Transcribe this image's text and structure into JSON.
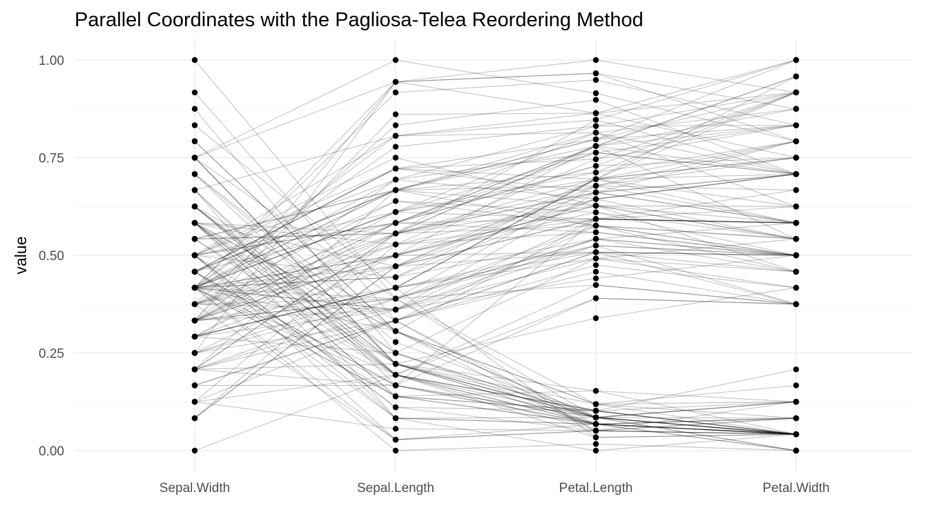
{
  "chart_data": {
    "type": "line",
    "subtype": "parallel-coordinates",
    "title": "Parallel Coordinates with the Pagliosa-Telea Reordering Method",
    "xlabel": "",
    "ylabel": "value",
    "ylim": [
      0,
      1
    ],
    "y_ticks": [
      "0.00",
      "0.25",
      "0.50",
      "0.75",
      "1.00"
    ],
    "y_tick_values": [
      0,
      0.25,
      0.5,
      0.75,
      1
    ],
    "categories": [
      "Sepal.Width",
      "Sepal.Length",
      "Petal.Length",
      "Petal.Width"
    ],
    "grid": true,
    "legend": "none",
    "line_color": "#000000",
    "point_color": "#000000",
    "observations": [
      [
        0.625,
        0.222,
        0.068,
        0.042
      ],
      [
        0.417,
        0.167,
        0.068,
        0.042
      ],
      [
        0.5,
        0.111,
        0.051,
        0.042
      ],
      [
        0.458,
        0.083,
        0.085,
        0.042
      ],
      [
        0.667,
        0.194,
        0.068,
        0.042
      ],
      [
        0.792,
        0.306,
        0.119,
        0.125
      ],
      [
        0.583,
        0.083,
        0.068,
        0.083
      ],
      [
        0.583,
        0.194,
        0.085,
        0.042
      ],
      [
        0.375,
        0.028,
        0.068,
        0.042
      ],
      [
        0.458,
        0.167,
        0.085,
        0.0
      ],
      [
        0.708,
        0.306,
        0.085,
        0.042
      ],
      [
        0.583,
        0.139,
        0.102,
        0.042
      ],
      [
        0.417,
        0.139,
        0.068,
        0.0
      ],
      [
        0.417,
        0.0,
        0.017,
        0.0
      ],
      [
        0.833,
        0.417,
        0.034,
        0.042
      ],
      [
        1.0,
        0.389,
        0.085,
        0.125
      ],
      [
        0.792,
        0.306,
        0.051,
        0.125
      ],
      [
        0.625,
        0.222,
        0.068,
        0.083
      ],
      [
        0.75,
        0.389,
        0.119,
        0.083
      ],
      [
        0.75,
        0.222,
        0.085,
        0.083
      ],
      [
        0.583,
        0.306,
        0.119,
        0.042
      ],
      [
        0.708,
        0.222,
        0.085,
        0.125
      ],
      [
        0.667,
        0.083,
        0.0,
        0.042
      ],
      [
        0.542,
        0.222,
        0.119,
        0.167
      ],
      [
        0.583,
        0.139,
        0.153,
        0.042
      ],
      [
        0.417,
        0.194,
        0.102,
        0.042
      ],
      [
        0.583,
        0.194,
        0.102,
        0.125
      ],
      [
        0.625,
        0.25,
        0.085,
        0.042
      ],
      [
        0.583,
        0.25,
        0.068,
        0.042
      ],
      [
        0.5,
        0.111,
        0.102,
        0.042
      ],
      [
        0.458,
        0.139,
        0.102,
        0.042
      ],
      [
        0.583,
        0.306,
        0.085,
        0.125
      ],
      [
        0.875,
        0.25,
        0.085,
        0.0
      ],
      [
        0.917,
        0.333,
        0.068,
        0.042
      ],
      [
        0.458,
        0.167,
        0.085,
        0.042
      ],
      [
        0.5,
        0.194,
        0.034,
        0.042
      ],
      [
        0.625,
        0.333,
        0.051,
        0.042
      ],
      [
        0.667,
        0.167,
        0.068,
        0.0
      ],
      [
        0.417,
        0.028,
        0.051,
        0.042
      ],
      [
        0.583,
        0.222,
        0.085,
        0.042
      ],
      [
        0.625,
        0.194,
        0.051,
        0.083
      ],
      [
        0.125,
        0.056,
        0.051,
        0.083
      ],
      [
        0.5,
        0.028,
        0.051,
        0.042
      ],
      [
        0.625,
        0.194,
        0.102,
        0.208
      ],
      [
        0.75,
        0.222,
        0.153,
        0.125
      ],
      [
        0.417,
        0.139,
        0.068,
        0.083
      ],
      [
        0.75,
        0.222,
        0.102,
        0.042
      ],
      [
        0.5,
        0.083,
        0.068,
        0.042
      ],
      [
        0.708,
        0.278,
        0.085,
        0.042
      ],
      [
        0.542,
        0.194,
        0.068,
        0.042
      ],
      [
        0.5,
        0.75,
        0.627,
        0.542
      ],
      [
        0.5,
        0.583,
        0.593,
        0.583
      ],
      [
        0.458,
        0.722,
        0.661,
        0.583
      ],
      [
        0.125,
        0.333,
        0.508,
        0.5
      ],
      [
        0.333,
        0.611,
        0.593,
        0.583
      ],
      [
        0.333,
        0.389,
        0.576,
        0.5
      ],
      [
        0.542,
        0.556,
        0.627,
        0.625
      ],
      [
        0.167,
        0.167,
        0.39,
        0.375
      ],
      [
        0.375,
        0.639,
        0.61,
        0.5
      ],
      [
        0.292,
        0.25,
        0.492,
        0.542
      ],
      [
        0.0,
        0.194,
        0.424,
        0.375
      ],
      [
        0.417,
        0.444,
        0.542,
        0.583
      ],
      [
        0.083,
        0.472,
        0.508,
        0.375
      ],
      [
        0.375,
        0.5,
        0.627,
        0.542
      ],
      [
        0.375,
        0.361,
        0.441,
        0.5
      ],
      [
        0.458,
        0.667,
        0.576,
        0.542
      ],
      [
        0.417,
        0.361,
        0.593,
        0.583
      ],
      [
        0.292,
        0.417,
        0.525,
        0.375
      ],
      [
        0.083,
        0.528,
        0.593,
        0.583
      ],
      [
        0.208,
        0.361,
        0.492,
        0.417
      ],
      [
        0.5,
        0.444,
        0.644,
        0.708
      ],
      [
        0.333,
        0.5,
        0.508,
        0.5
      ],
      [
        0.208,
        0.556,
        0.661,
        0.583
      ],
      [
        0.333,
        0.5,
        0.627,
        0.458
      ],
      [
        0.375,
        0.583,
        0.559,
        0.5
      ],
      [
        0.417,
        0.639,
        0.576,
        0.542
      ],
      [
        0.333,
        0.694,
        0.644,
        0.542
      ],
      [
        0.417,
        0.667,
        0.678,
        0.667
      ],
      [
        0.375,
        0.472,
        0.593,
        0.583
      ],
      [
        0.25,
        0.389,
        0.424,
        0.375
      ],
      [
        0.167,
        0.333,
        0.475,
        0.417
      ],
      [
        0.167,
        0.333,
        0.458,
        0.375
      ],
      [
        0.292,
        0.417,
        0.492,
        0.458
      ],
      [
        0.292,
        0.472,
        0.695,
        0.625
      ],
      [
        0.417,
        0.306,
        0.593,
        0.583
      ],
      [
        0.583,
        0.472,
        0.593,
        0.625
      ],
      [
        0.458,
        0.667,
        0.627,
        0.583
      ],
      [
        0.125,
        0.556,
        0.576,
        0.5
      ],
      [
        0.417,
        0.361,
        0.525,
        0.5
      ],
      [
        0.208,
        0.333,
        0.508,
        0.5
      ],
      [
        0.25,
        0.333,
        0.576,
        0.458
      ],
      [
        0.417,
        0.5,
        0.61,
        0.542
      ],
      [
        0.25,
        0.417,
        0.508,
        0.458
      ],
      [
        0.125,
        0.194,
        0.39,
        0.375
      ],
      [
        0.292,
        0.361,
        0.542,
        0.5
      ],
      [
        0.417,
        0.389,
        0.542,
        0.458
      ],
      [
        0.375,
        0.389,
        0.542,
        0.5
      ],
      [
        0.375,
        0.528,
        0.559,
        0.5
      ],
      [
        0.208,
        0.222,
        0.339,
        0.417
      ],
      [
        0.333,
        0.389,
        0.525,
        0.5
      ],
      [
        0.542,
        0.556,
        0.847,
        1.0
      ],
      [
        0.292,
        0.417,
        0.695,
        0.75
      ],
      [
        0.417,
        0.778,
        0.831,
        0.833
      ],
      [
        0.375,
        0.556,
        0.78,
        0.708
      ],
      [
        0.417,
        0.611,
        0.814,
        0.875
      ],
      [
        0.417,
        0.917,
        0.949,
        0.833
      ],
      [
        0.208,
        0.167,
        0.593,
        0.667
      ],
      [
        0.375,
        0.833,
        0.898,
        0.708
      ],
      [
        0.208,
        0.667,
        0.814,
        0.708
      ],
      [
        0.667,
        0.806,
        0.864,
        1.0
      ],
      [
        0.5,
        0.611,
        0.695,
        0.792
      ],
      [
        0.292,
        0.583,
        0.729,
        0.75
      ],
      [
        0.417,
        0.694,
        0.763,
        0.833
      ],
      [
        0.208,
        0.389,
        0.678,
        0.792
      ],
      [
        0.333,
        0.417,
        0.695,
        0.958
      ],
      [
        0.5,
        0.583,
        0.729,
        0.917
      ],
      [
        0.417,
        0.611,
        0.763,
        0.708
      ],
      [
        0.75,
        0.944,
        0.966,
        0.875
      ],
      [
        0.25,
        0.944,
        1.0,
        0.917
      ],
      [
        0.083,
        0.472,
        0.678,
        0.583
      ],
      [
        0.5,
        0.722,
        0.797,
        0.917
      ],
      [
        0.333,
        0.361,
        0.661,
        0.792
      ],
      [
        0.333,
        0.944,
        0.966,
        0.792
      ],
      [
        0.292,
        0.556,
        0.661,
        0.708
      ],
      [
        0.542,
        0.667,
        0.797,
        0.833
      ],
      [
        0.5,
        0.806,
        0.847,
        0.708
      ],
      [
        0.333,
        0.528,
        0.644,
        0.708
      ],
      [
        0.417,
        0.5,
        0.661,
        0.708
      ],
      [
        0.333,
        0.583,
        0.78,
        0.833
      ],
      [
        0.417,
        0.806,
        0.814,
        0.625
      ],
      [
        0.333,
        0.861,
        0.864,
        0.75
      ],
      [
        0.75,
        1.0,
        0.915,
        0.792
      ],
      [
        0.333,
        0.583,
        0.78,
        0.875
      ],
      [
        0.333,
        0.556,
        0.695,
        0.583
      ],
      [
        0.25,
        0.5,
        0.78,
        0.542
      ],
      [
        0.417,
        0.944,
        0.864,
        0.917
      ],
      [
        0.583,
        0.556,
        0.78,
        0.958
      ],
      [
        0.458,
        0.583,
        0.763,
        0.708
      ],
      [
        0.417,
        0.472,
        0.644,
        0.708
      ],
      [
        0.458,
        0.722,
        0.746,
        0.833
      ],
      [
        0.458,
        0.667,
        0.78,
        0.958
      ],
      [
        0.458,
        0.722,
        0.695,
        0.917
      ],
      [
        0.292,
        0.417,
        0.695,
        0.75
      ],
      [
        0.5,
        0.694,
        0.831,
        0.917
      ],
      [
        0.542,
        0.667,
        0.797,
        1.0
      ],
      [
        0.417,
        0.667,
        0.712,
        0.917
      ],
      [
        0.208,
        0.556,
        0.678,
        0.75
      ],
      [
        0.417,
        0.611,
        0.712,
        0.792
      ],
      [
        0.583,
        0.528,
        0.746,
        0.917
      ],
      [
        0.417,
        0.444,
        0.695,
        0.708
      ]
    ]
  }
}
